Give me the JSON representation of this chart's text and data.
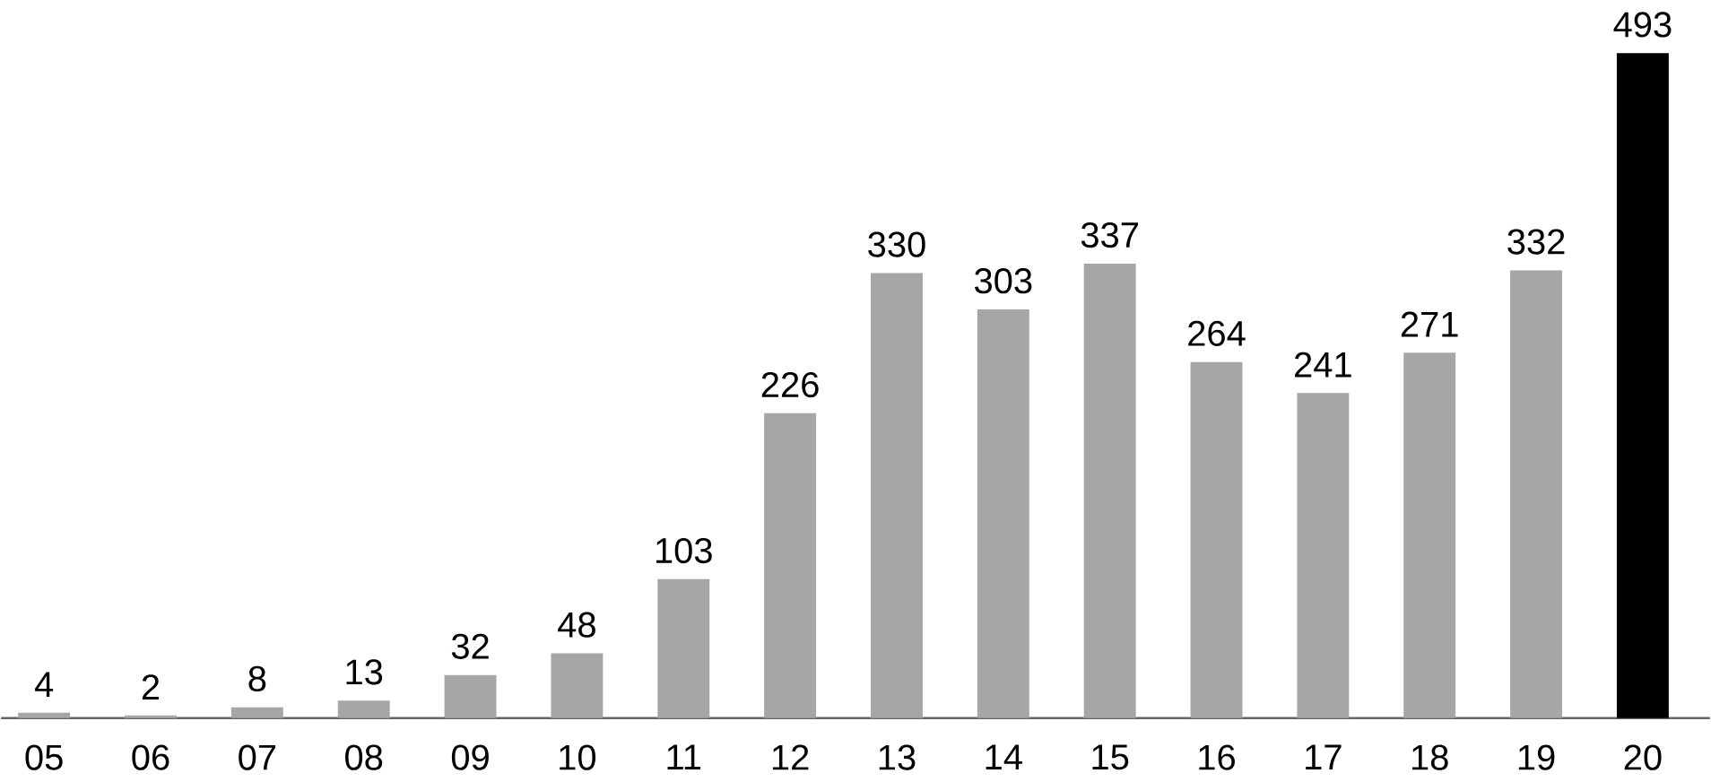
{
  "chart_data": {
    "type": "bar",
    "categories": [
      "05",
      "06",
      "07",
      "08",
      "09",
      "10",
      "11",
      "12",
      "13",
      "14",
      "15",
      "16",
      "17",
      "18",
      "19",
      "20"
    ],
    "values": [
      4,
      2,
      8,
      13,
      32,
      48,
      103,
      226,
      330,
      303,
      337,
      264,
      241,
      271,
      332,
      493
    ],
    "colors": [
      "#a6a6a6",
      "#a6a6a6",
      "#a6a6a6",
      "#a6a6a6",
      "#a6a6a6",
      "#a6a6a6",
      "#a6a6a6",
      "#a6a6a6",
      "#a6a6a6",
      "#a6a6a6",
      "#a6a6a6",
      "#a6a6a6",
      "#a6a6a6",
      "#a6a6a6",
      "#a6a6a6",
      "#000000"
    ],
    "data_labels": true
  }
}
